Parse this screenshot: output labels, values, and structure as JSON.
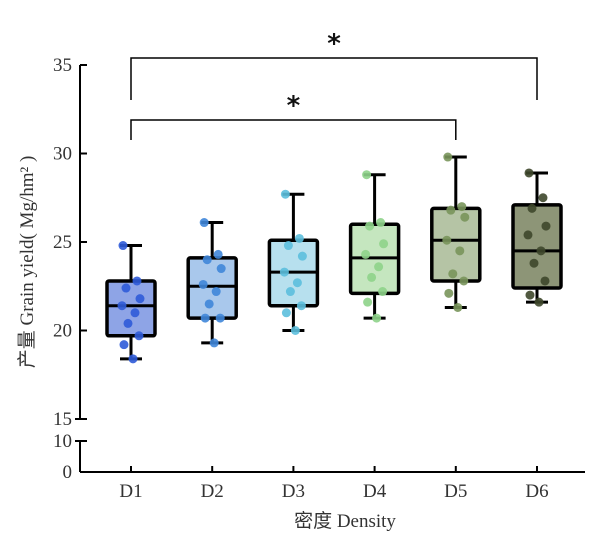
{
  "chart_data": {
    "type": "box",
    "title": "",
    "xlabel": "密度 Density",
    "ylabel": "产量 Grain yield( Mg/hm² )",
    "y_axis": {
      "break": true,
      "lower_range": [
        0,
        10
      ],
      "lower_ticks": [
        "0",
        "10"
      ],
      "upper_range": [
        15,
        35
      ],
      "upper_ticks": [
        "15",
        "20",
        "25",
        "30",
        "35"
      ]
    },
    "categories": [
      "D1",
      "D2",
      "D3",
      "D4",
      "D5",
      "D6"
    ],
    "boxes": [
      {
        "name": "D1",
        "whisker_low": 18.4,
        "q1": 19.7,
        "median": 21.4,
        "q3": 22.8,
        "whisker_high": 24.8,
        "fill": "#8ea4e6",
        "point_color": "#2f5bd8",
        "points": [
          24.8,
          22.8,
          22.4,
          21.8,
          21.4,
          21.0,
          20.4,
          19.7,
          19.2,
          18.4
        ]
      },
      {
        "name": "D2",
        "whisker_low": 19.3,
        "q1": 20.7,
        "median": 22.5,
        "q3": 24.1,
        "whisker_high": 26.1,
        "fill": "#a9c8ec",
        "point_color": "#3f86d9",
        "points": [
          26.1,
          24.3,
          24.0,
          23.5,
          22.6,
          22.2,
          21.5,
          20.7,
          20.7,
          19.3
        ]
      },
      {
        "name": "D3",
        "whisker_low": 20.0,
        "q1": 21.4,
        "median": 23.3,
        "q3": 25.1,
        "whisker_high": 27.7,
        "fill": "#b7e0ee",
        "point_color": "#5cbfdd",
        "points": [
          27.7,
          25.2,
          24.8,
          24.2,
          23.3,
          22.7,
          22.2,
          21.4,
          21.0,
          20.0
        ]
      },
      {
        "name": "D4",
        "whisker_low": 20.7,
        "q1": 22.1,
        "median": 24.1,
        "q3": 26.0,
        "whisker_high": 28.8,
        "fill": "#c5e6bf",
        "point_color": "#8ed38a",
        "points": [
          28.8,
          26.1,
          25.9,
          24.9,
          24.3,
          23.6,
          23.0,
          22.2,
          21.6,
          20.7
        ]
      },
      {
        "name": "D5",
        "whisker_low": 21.3,
        "q1": 22.8,
        "median": 25.1,
        "q3": 26.9,
        "whisker_high": 29.8,
        "fill": "#b5c4a5",
        "point_color": "#79955b",
        "points": [
          29.8,
          27.0,
          26.8,
          26.4,
          25.1,
          24.5,
          23.2,
          22.8,
          22.1,
          21.3
        ]
      },
      {
        "name": "D6",
        "whisker_low": 21.6,
        "q1": 22.4,
        "median": 24.5,
        "q3": 27.1,
        "whisker_high": 28.9,
        "fill": "#8d9577",
        "point_color": "#3e472b",
        "points": [
          28.9,
          27.5,
          26.9,
          25.9,
          25.4,
          24.5,
          23.8,
          22.8,
          22.0,
          21.6
        ]
      }
    ],
    "significance": [
      {
        "from": "D1",
        "to": "D5",
        "label": "*",
        "level": 1
      },
      {
        "from": "D1",
        "to": "D6",
        "label": "*",
        "level": 2
      }
    ],
    "grid": false,
    "legend": "none"
  }
}
